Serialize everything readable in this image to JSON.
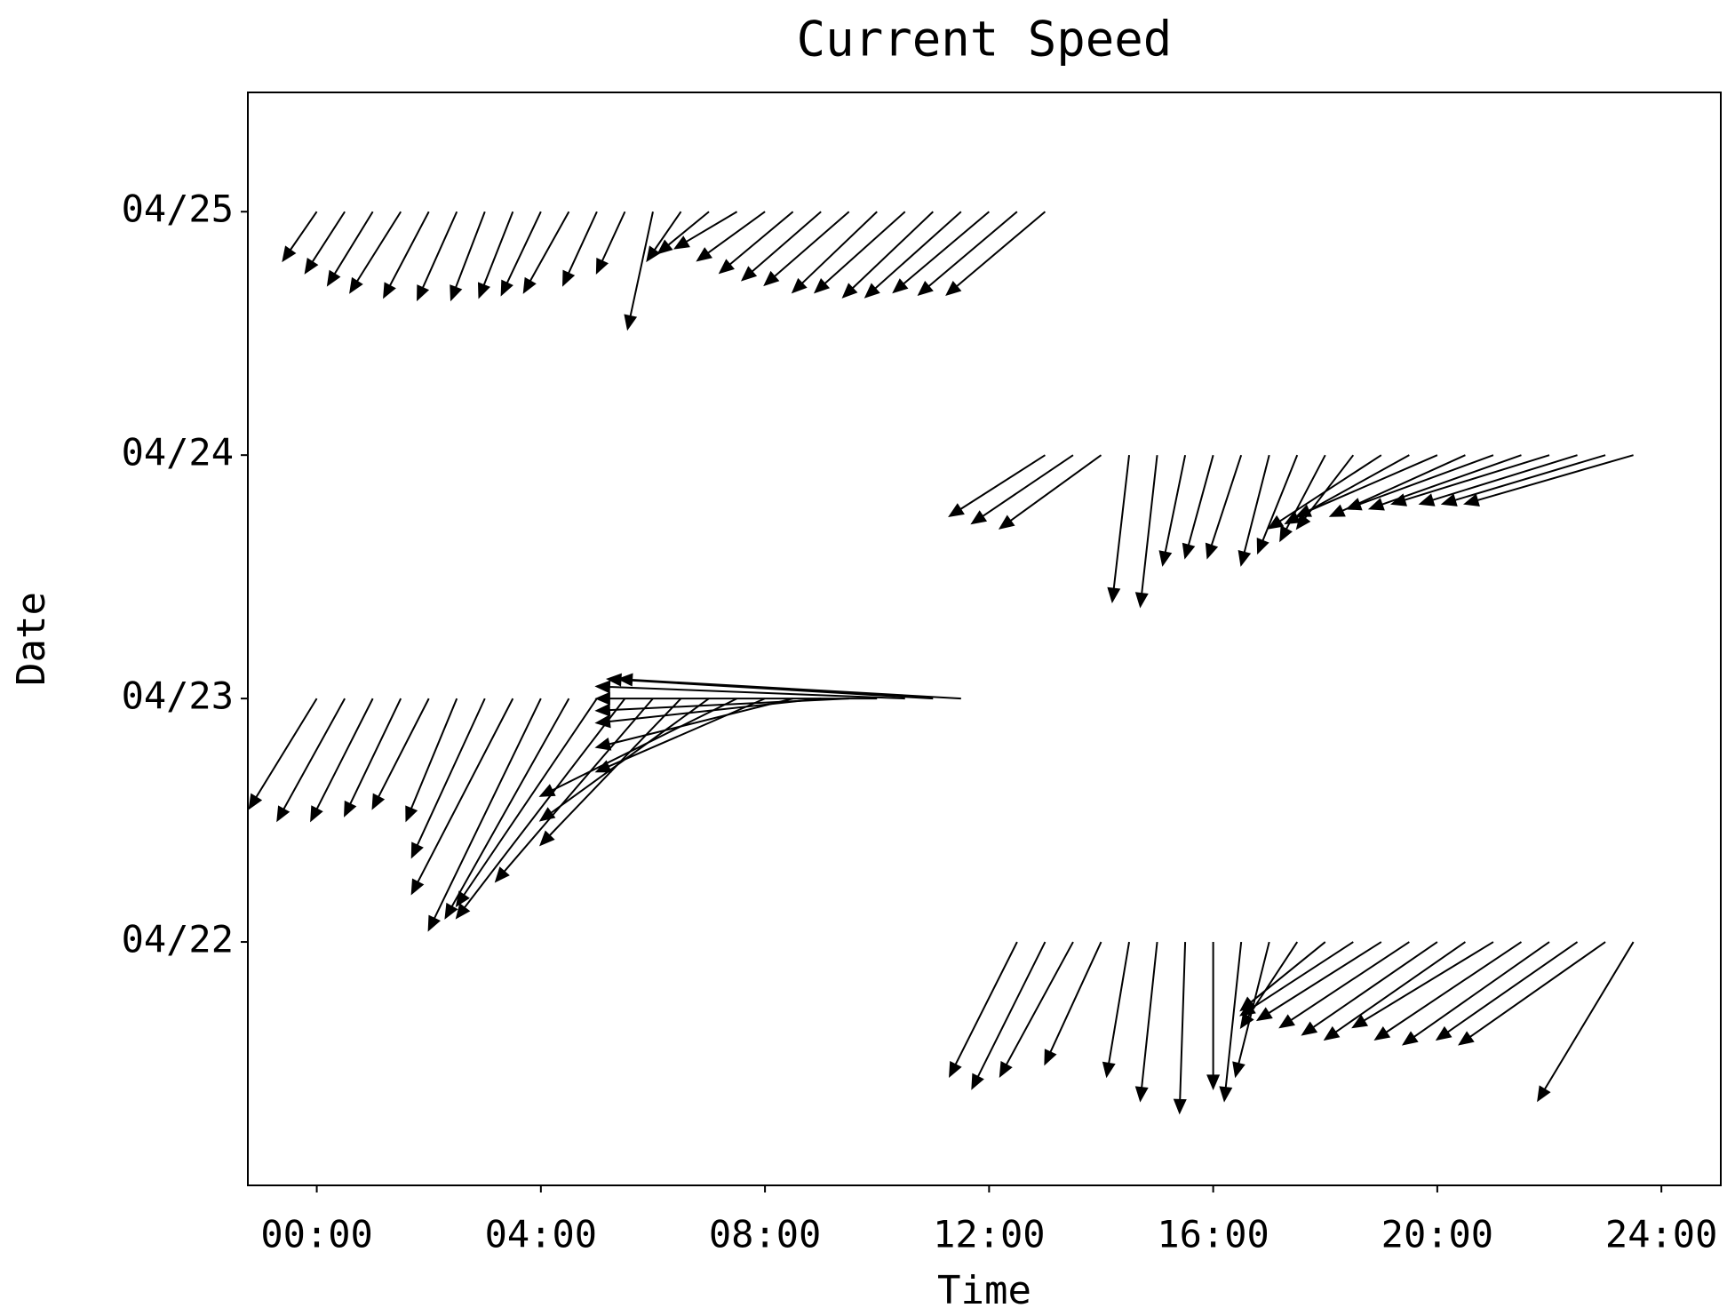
{
  "chart_data": {
    "type": "quiver",
    "title": "Current Speed",
    "x_label": "Time",
    "y_label": "Date",
    "color": "#000000",
    "x": [
      0,
      0.5,
      1,
      1.5,
      2,
      2.5,
      3,
      3.5,
      4,
      4.5,
      5,
      5.5,
      6,
      6.5,
      7,
      7.5,
      8,
      8.5,
      9,
      9.5,
      10,
      10.5,
      11,
      11.5,
      12,
      12.5,
      13,
      13,
      13.5,
      14,
      14.5,
      15,
      15.5,
      16,
      16.5,
      17,
      17.5,
      18,
      18.5,
      19,
      19.5,
      20,
      20.5,
      21,
      21.5,
      22,
      22.5,
      23,
      23.5,
      0,
      0.5,
      1,
      1.5,
      2,
      2.5,
      3,
      3.5,
      4,
      4.5,
      5,
      5.5,
      6,
      6.5,
      7,
      7.5,
      8,
      8.5,
      9,
      9.5,
      10,
      10.5,
      11,
      11.5,
      12.5,
      13,
      13.5,
      14,
      14.5,
      15,
      15.5,
      16,
      16.5,
      17,
      17.5,
      18,
      18.5,
      19,
      19.5,
      20,
      20.5,
      21,
      21.5,
      22,
      22.5,
      23,
      23.5
    ],
    "y": [
      25,
      25,
      25,
      25,
      25,
      25,
      25,
      25,
      25,
      25,
      25,
      25,
      25,
      25,
      25,
      25,
      25,
      25,
      25,
      25,
      25,
      25,
      25,
      25,
      25,
      25,
      25,
      24,
      24,
      24,
      24,
      24,
      24,
      24,
      24,
      24,
      24,
      24,
      24,
      24,
      24,
      24,
      24,
      24,
      24,
      24,
      24,
      24,
      24,
      23,
      23,
      23,
      23,
      23,
      23,
      23,
      23,
      23,
      23,
      23,
      23,
      23,
      23,
      23,
      23,
      23,
      23,
      23,
      23,
      23,
      23,
      23,
      23,
      22,
      22,
      22,
      22,
      22,
      22,
      22,
      22,
      22,
      22,
      22,
      22,
      22,
      22,
      22,
      22,
      22,
      22,
      22,
      22,
      22,
      22,
      22
    ],
    "u": [
      -0.6,
      -0.7,
      -0.8,
      -0.9,
      -0.8,
      -0.7,
      -0.6,
      -0.6,
      -0.7,
      -0.8,
      -0.6,
      -0.5,
      -0.45,
      -0.6,
      -0.9,
      -1.1,
      -1.2,
      -1.3,
      -1.4,
      -1.5,
      -1.5,
      -1.6,
      -1.6,
      -1.7,
      -1.7,
      -1.75,
      -1.75,
      -1.7,
      -1.8,
      -1.8,
      -0.3,
      -0.3,
      -0.4,
      -0.5,
      -0.6,
      -0.5,
      -0.7,
      -0.8,
      -1.0,
      -2.0,
      -2.2,
      -2.5,
      -2.4,
      -2.6,
      -2.7,
      -2.8,
      -2.8,
      -2.9,
      -3.0,
      -1.2,
      -1.2,
      -1.1,
      -1.0,
      -1.0,
      -0.9,
      -1.3,
      -1.8,
      -2.0,
      -2.2,
      -2.5,
      -3.0,
      -2.8,
      -2.5,
      -3.0,
      -3.5,
      -3.0,
      -3.5,
      -4.0,
      -4.5,
      -5.0,
      -5.5,
      -5.8,
      -6.1,
      -1.2,
      -1.3,
      -1.3,
      -1.0,
      -0.4,
      -0.3,
      -0.1,
      0.0,
      -0.3,
      -0.6,
      -1.0,
      -1.5,
      -2.0,
      -2.2,
      -2.3,
      -2.4,
      -2.5,
      -2.5,
      -2.6,
      -2.6,
      -2.5,
      -2.6,
      -1.7
    ],
    "v": [
      -0.2,
      -0.25,
      -0.3,
      -0.33,
      -0.35,
      -0.36,
      -0.36,
      -0.35,
      -0.34,
      -0.33,
      -0.3,
      -0.25,
      -0.48,
      -0.2,
      -0.17,
      -0.15,
      -0.2,
      -0.25,
      -0.28,
      -0.3,
      -0.33,
      -0.33,
      -0.35,
      -0.35,
      -0.33,
      -0.34,
      -0.34,
      -0.25,
      -0.28,
      -0.3,
      -0.6,
      -0.62,
      -0.45,
      -0.42,
      -0.42,
      -0.45,
      -0.4,
      -0.35,
      -0.3,
      -0.3,
      -0.28,
      -0.25,
      -0.25,
      -0.22,
      -0.22,
      -0.2,
      -0.2,
      -0.2,
      -0.2,
      -0.45,
      -0.5,
      -0.5,
      -0.48,
      -0.45,
      -0.5,
      -0.65,
      -0.8,
      -0.95,
      -0.9,
      -0.85,
      -0.9,
      -0.75,
      -0.6,
      -0.5,
      -0.4,
      -0.3,
      -0.2,
      -0.1,
      -0.05,
      0,
      0.05,
      0.08,
      0.08,
      -0.55,
      -0.6,
      -0.55,
      -0.5,
      -0.55,
      -0.65,
      -0.7,
      -0.6,
      -0.65,
      -0.55,
      -0.35,
      -0.28,
      -0.3,
      -0.32,
      -0.35,
      -0.38,
      -0.4,
      -0.35,
      -0.4,
      -0.42,
      -0.4,
      -0.42,
      -0.65
    ],
    "xlim": [
      -1.23,
      25.06
    ],
    "ylim": [
      21.0,
      25.49
    ],
    "xticks": [
      {
        "value": 0,
        "label": "00:00"
      },
      {
        "value": 4,
        "label": "04:00"
      },
      {
        "value": 8,
        "label": "08:00"
      },
      {
        "value": 12,
        "label": "12:00"
      },
      {
        "value": 16,
        "label": "16:00"
      },
      {
        "value": 20,
        "label": "20:00"
      },
      {
        "value": 24,
        "label": "24:00"
      }
    ],
    "yticks": [
      {
        "value": 22,
        "label": "04/22"
      },
      {
        "value": 23,
        "label": "04/23"
      },
      {
        "value": 24,
        "label": "04/24"
      },
      {
        "value": 25,
        "label": "04/25"
      }
    ],
    "grid": false
  }
}
